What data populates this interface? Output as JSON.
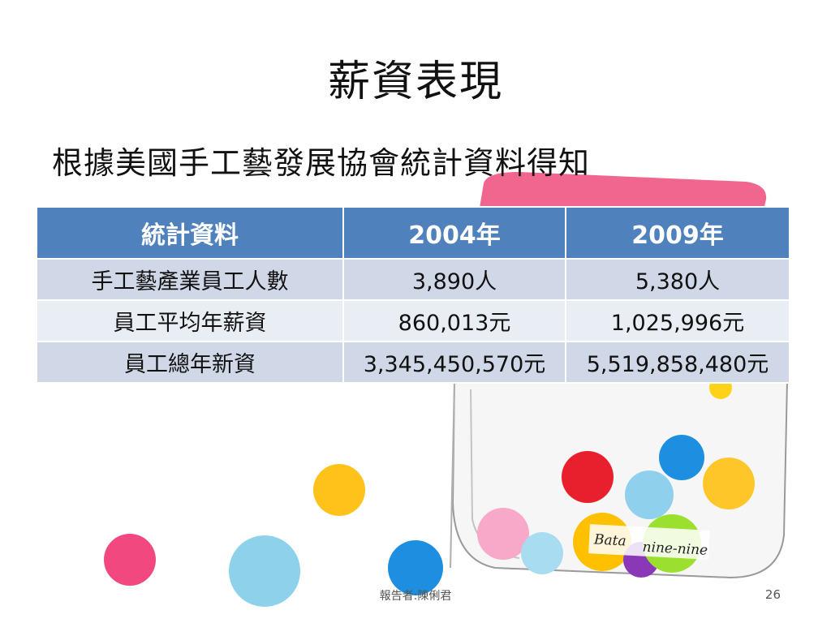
{
  "slide": {
    "title": "薪資表現",
    "subtitle": "根據美國手工藝發展協會統計資料得知",
    "table": {
      "headers": [
        "統計資料",
        "2004年",
        "2009年"
      ],
      "rows": [
        [
          "手工藝產業員工人數",
          "3,890人",
          "5,380人"
        ],
        [
          "員工平均年薪資",
          "860,013元",
          "1,025,996元"
        ],
        [
          "員工總年新資",
          "3,345,450,570元",
          "5,519,858,480元"
        ]
      ]
    },
    "illustration": {
      "label_left": "Bata",
      "label_right": "nine-nine"
    },
    "footer": "報告者:陳俐君",
    "page_number": "26"
  }
}
